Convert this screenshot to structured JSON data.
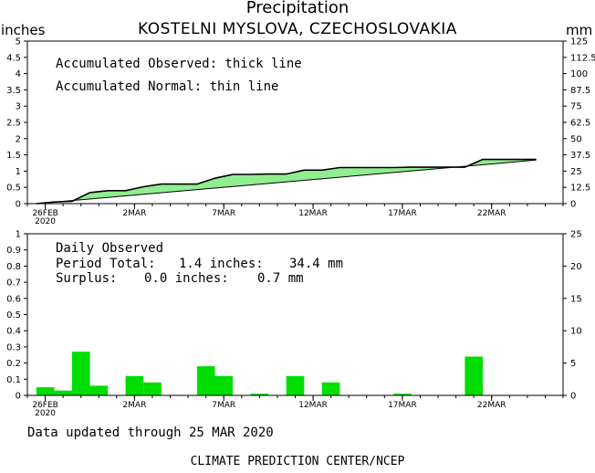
{
  "header": {
    "title": "Precipitation",
    "station": "KOSTELNI MYSLOVA, CZECHOSLOVAKIA",
    "unit_left": "inches",
    "unit_right": "mm"
  },
  "top_panel": {
    "legend_observed": "Accumulated Observed: thick line",
    "legend_normal": "Accumulated Normal: thin line"
  },
  "bottom_panel": {
    "label": "Daily Observed",
    "period_label": "Period Total:",
    "period_inches": "1.4 inches:",
    "period_mm": "34.4 mm",
    "surplus_label": "Surplus:",
    "surplus_inches": "0.0 inches:",
    "surplus_mm": "0.7 mm"
  },
  "footer": {
    "updated": "Data updated through 25 MAR 2020",
    "credit": "CLIMATE PREDICTION CENTER/NCEP"
  },
  "colors": {
    "fill": "#90ee90",
    "bar": "#00dd00",
    "line": "#000000"
  },
  "chart_data": [
    {
      "type": "area",
      "xlabel": "",
      "x_ticks": [
        "26FEB",
        "2MAR",
        "7MAR",
        "12MAR",
        "17MAR",
        "22MAR"
      ],
      "x_tick_days": [
        0,
        5,
        10,
        15,
        20,
        25
      ],
      "x_year_label": "2020",
      "xlim": [
        -1,
        29
      ],
      "ylim": [
        0,
        5
      ],
      "yticks": [
        "0",
        "0.5",
        "1",
        "1.5",
        "2",
        "2.5",
        "3",
        "3.5",
        "4",
        "4.5",
        "5"
      ],
      "y2lim": [
        0,
        125
      ],
      "y2ticks": [
        "0",
        "12.5",
        "25",
        "37.5",
        "50",
        "62.5",
        "75",
        "87.5",
        "100",
        "112.5",
        "125"
      ],
      "series": [
        {
          "name": "Accumulated Observed",
          "x": [
            -0.5,
            0.5,
            1.5,
            2.5,
            3.5,
            4.5,
            5.5,
            6.5,
            7.5,
            8.5,
            9.5,
            10.5,
            11.5,
            12.5,
            13.5,
            14.5,
            15.5,
            16.5,
            17.5,
            18.5,
            19.5,
            20.5,
            21.5,
            22.5,
            23.5,
            24.5,
            25.5,
            26.5,
            27.5
          ],
          "values": [
            0,
            0.05,
            0.07,
            0.34,
            0.4,
            0.4,
            0.52,
            0.6,
            0.6,
            0.6,
            0.78,
            0.9,
            0.9,
            0.91,
            0.91,
            1.03,
            1.03,
            1.11,
            1.11,
            1.11,
            1.11,
            1.12,
            1.12,
            1.12,
            1.12,
            1.36,
            1.36,
            1.36,
            1.36
          ]
        },
        {
          "name": "Accumulated Normal",
          "x": [
            -0.5,
            27.5
          ],
          "values": [
            0.0,
            1.34
          ]
        }
      ]
    },
    {
      "type": "bar",
      "label": "Daily Observed",
      "x_ticks": [
        "26FEB",
        "2MAR",
        "7MAR",
        "12MAR",
        "17MAR",
        "22MAR"
      ],
      "x_tick_days": [
        0,
        5,
        10,
        15,
        20,
        25
      ],
      "x_year_label": "2020",
      "xlim": [
        -1,
        29
      ],
      "ylim": [
        0,
        1
      ],
      "yticks": [
        "0",
        "0.1",
        "0.2",
        "0.3",
        "0.4",
        "0.5",
        "0.6",
        "0.7",
        "0.8",
        "0.9",
        "1"
      ],
      "y2lim": [
        0,
        25
      ],
      "y2ticks": [
        "0",
        "5",
        "10",
        "15",
        "20",
        "25"
      ],
      "x": [
        0,
        1,
        2,
        3,
        5,
        6,
        9,
        10,
        12,
        14,
        16,
        20,
        24
      ],
      "values": [
        0.05,
        0.03,
        0.27,
        0.06,
        0.12,
        0.08,
        0.18,
        0.12,
        0.01,
        0.12,
        0.08,
        0.01,
        0.24
      ]
    }
  ]
}
